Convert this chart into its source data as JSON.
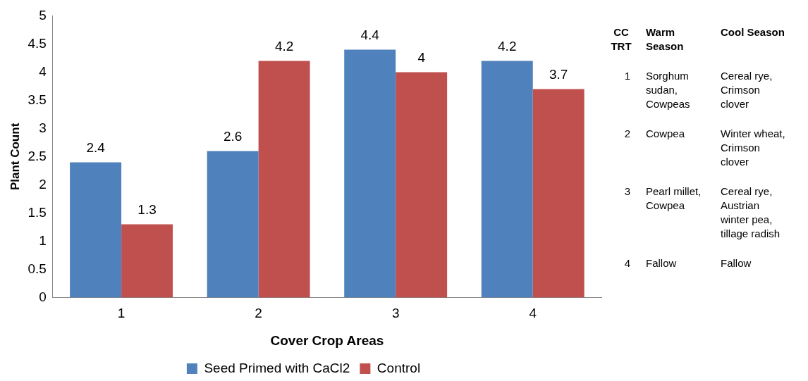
{
  "chart_data": [
    {
      "type": "bar",
      "xlabel": "Cover Crop Areas",
      "ylabel": "Plant Count",
      "categories": [
        "1",
        "2",
        "3",
        "4"
      ],
      "series": [
        {
          "name": "Seed Primed with CaCl2",
          "color": "#4f81bd",
          "values": [
            2.4,
            2.6,
            4.4,
            4.2
          ]
        },
        {
          "name": "Control",
          "color": "#c0504d",
          "values": [
            1.3,
            4.2,
            4,
            3.7
          ]
        }
      ],
      "ylim": [
        0,
        5
      ],
      "yticks": [
        0,
        0.5,
        1,
        1.5,
        2,
        2.5,
        3,
        3.5,
        4,
        4.5,
        5
      ],
      "grid": false,
      "legend": "bottom",
      "data_labels": true
    },
    {
      "type": "other",
      "annotations": [
        "CC TRT",
        "Warm Season",
        "Cool Season",
        "1",
        "Sorghum sudan, Cowpeas",
        "Cereal rye, Crimson clover",
        "2",
        "Cowpea",
        "Winter wheat, Crimson clover",
        "3",
        "Pearl millet, Cowpea",
        "Cereal rye, Austrian winter pea, tillage radish",
        "4",
        "Fallow",
        "Fallow"
      ]
    }
  ]
}
